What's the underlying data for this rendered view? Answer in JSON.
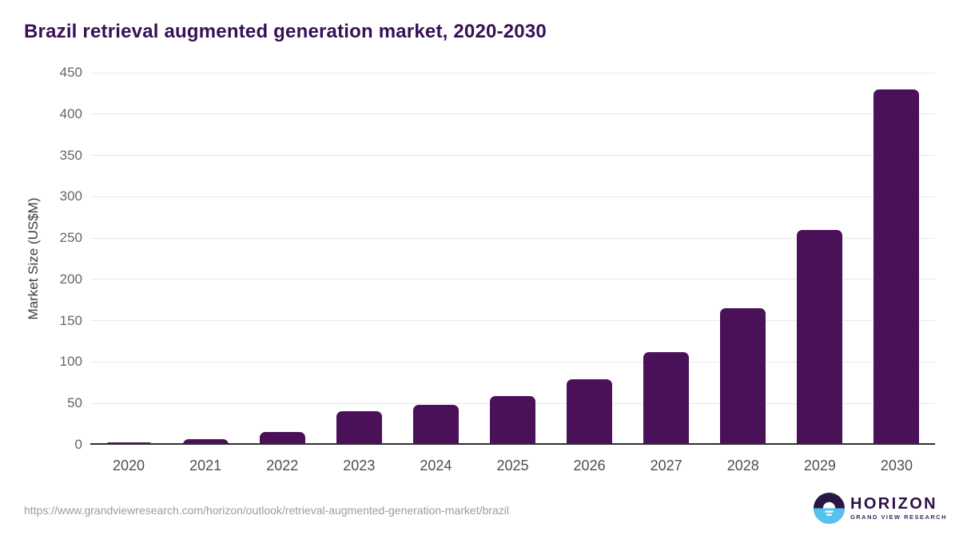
{
  "chart_data": {
    "type": "bar",
    "title": "Brazil retrieval augmented generation market, 2020-2030",
    "categories": [
      "2020",
      "2021",
      "2022",
      "2023",
      "2024",
      "2025",
      "2026",
      "2027",
      "2028",
      "2029",
      "2030"
    ],
    "values": [
      3,
      7,
      15,
      41,
      48,
      59,
      79,
      112,
      165,
      260,
      430
    ],
    "xlabel": "",
    "ylabel": "Market Size (US$M)",
    "ylim": [
      0,
      450
    ],
    "ytick_step": 50,
    "yticks": [
      0,
      50,
      100,
      150,
      200,
      250,
      300,
      350,
      400,
      450
    ],
    "grid": true,
    "legend": "none",
    "bar_color": "#4a1158"
  },
  "footer": {
    "source_url": "https://www.grandviewresearch.com/horizon/outlook/retrieval-augmented-generation-market/brazil"
  },
  "logo": {
    "name": "HORIZON",
    "subtitle": "GRAND VIEW RESEARCH",
    "icon": "horizon-sunset-circle-icon",
    "dark_color": "#2a1745",
    "blue_color": "#56c1ef"
  },
  "colors": {
    "title_text": "#371056",
    "bar": "#4a1158",
    "gridline": "#e9e9ed",
    "axis_line": "#2f2f2f",
    "tick_text": "#666666",
    "x_label_text": "#4f4f4f",
    "url_text": "#9c9c9c"
  }
}
